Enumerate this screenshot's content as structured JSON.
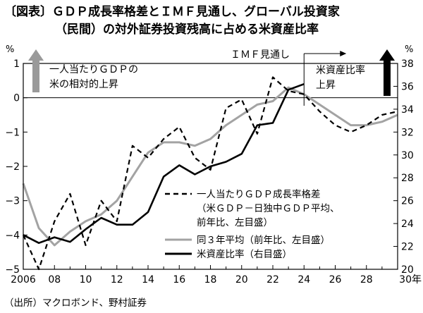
{
  "chart_data": {
    "type": "line",
    "title_lines": [
      "〔図表〕ＧＤＰ成長率格差とＩＭＦ見通し、グローバル投資家",
      "（民間）の対外証券投資残高に占める米資産比率"
    ],
    "left_axis": {
      "unit": "%",
      "min": -5,
      "max": 1,
      "ticks": [
        1,
        0,
        -1,
        -2,
        -3,
        -4,
        -5
      ],
      "tick_labels": [
        "1",
        "0",
        "−1",
        "−2",
        "−3",
        "−4",
        "−5"
      ]
    },
    "right_axis": {
      "unit": "%",
      "min": 20,
      "max": 38,
      "ticks": [
        38,
        36,
        34,
        32,
        30,
        28,
        26,
        24,
        22,
        20
      ],
      "tick_labels": [
        "38",
        "36",
        "34",
        "32",
        "30",
        "28",
        "26",
        "24",
        "22",
        "20"
      ]
    },
    "x_axis": {
      "min": 2006,
      "max": 2030,
      "ticks": [
        2006,
        2008,
        2010,
        2012,
        2014,
        2016,
        2018,
        2020,
        2022,
        2024,
        2026,
        2028,
        2030
      ],
      "tick_labels": [
        "2006",
        "08",
        "10",
        "12",
        "14",
        "16",
        "18",
        "20",
        "22",
        "24",
        "26",
        "28",
        "30年"
      ]
    },
    "forecast_start": 2024,
    "series": [
      {
        "name": "一人当たりＧＤＰ成長率格差（米ＧＤＰ－日独中ＧＤＰ平均、前年比、左目盛）",
        "axis": "left",
        "style": "dashed",
        "x": [
          2006,
          2007,
          2008,
          2009,
          2010,
          2011,
          2012,
          2013,
          2014,
          2015,
          2016,
          2017,
          2018,
          2019,
          2020,
          2021,
          2022,
          2023,
          2024,
          2025,
          2026,
          2027,
          2028,
          2029,
          2030
        ],
        "values": [
          -4.0,
          -5.0,
          -3.6,
          -2.8,
          -4.3,
          -3.0,
          -3.6,
          -1.4,
          -1.75,
          -1.2,
          -0.85,
          -1.75,
          -2.1,
          -0.3,
          -0.05,
          -1.05,
          0.6,
          0.2,
          0.1,
          -0.4,
          -0.8,
          -1.0,
          -0.8,
          -0.5,
          -0.4
        ]
      },
      {
        "name": "同３年平均（前年比、左目盛）",
        "axis": "left",
        "style": "gray",
        "x": [
          2006,
          2007,
          2008,
          2009,
          2010,
          2011,
          2012,
          2013,
          2014,
          2015,
          2016,
          2017,
          2018,
          2019,
          2020,
          2021,
          2022,
          2023,
          2024,
          2025,
          2026,
          2027,
          2028,
          2029,
          2030
        ],
        "values": [
          -2.5,
          -3.8,
          -4.3,
          -3.9,
          -3.6,
          -3.4,
          -3.0,
          -2.3,
          -1.6,
          -1.3,
          -1.3,
          -1.4,
          -1.2,
          -0.8,
          -0.5,
          -0.2,
          -0.1,
          0.3,
          0.1,
          -0.2,
          -0.5,
          -0.8,
          -0.8,
          -0.7,
          -0.5
        ]
      },
      {
        "name": "米資産比率（右目盛）",
        "axis": "right",
        "style": "black",
        "x": [
          2006,
          2007,
          2008,
          2009,
          2010,
          2011,
          2012,
          2013,
          2014,
          2015,
          2016,
          2017,
          2018,
          2019,
          2020,
          2021,
          2022,
          2023,
          2024
        ],
        "values": [
          23.0,
          22.3,
          22.8,
          22.4,
          23.5,
          24.5,
          23.9,
          23.9,
          25.0,
          28.1,
          29.1,
          28.3,
          29.0,
          29.4,
          30.1,
          32.6,
          32.8,
          35.7,
          36.2
        ]
      }
    ],
    "annotations": {
      "left_arrow_lines": [
        "一人当たりＧＤＰの",
        "米の相対的上昇"
      ],
      "right_arrow_lines": [
        "米資産比率",
        "上昇"
      ],
      "imf_label": "ＩＭＦ見通し"
    },
    "legend_lines": [
      "一人当たりＧＤＰ成長率格差",
      "（米ＧＤＰ－日独中ＧＤＰ平均、",
      "前年比、左目盛）",
      "同３年平均（前年比、左目盛）",
      "米資産比率（右目盛）"
    ],
    "source": "（出所）マクロボンド、野村証券",
    "colors": {
      "dashed": "#000000",
      "gray": "#a3a3a3",
      "black": "#000000",
      "left_arrow": "#9a9a9a",
      "right_arrow": "#000000"
    }
  }
}
